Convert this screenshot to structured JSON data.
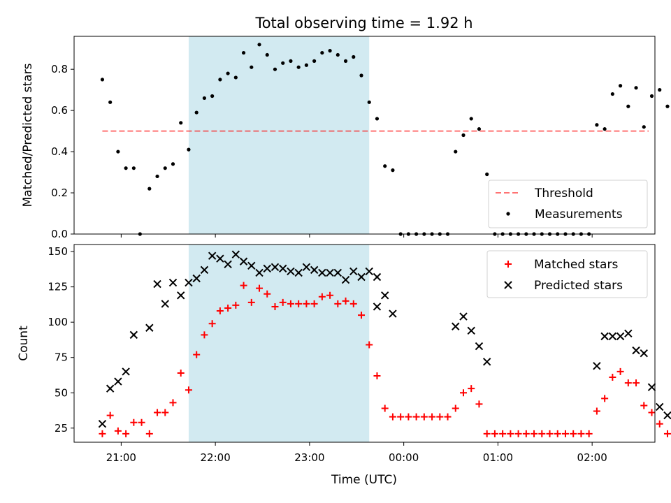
{
  "figure": {
    "title": "Total observing time = 1.92 h",
    "xlabel": "Time (UTC)"
  },
  "colors": {
    "highlight": "#add8e6",
    "threshold": "#ff0000",
    "measurements": "#000000",
    "matched": "#ff0000",
    "predicted": "#000000"
  },
  "chart_data": [
    {
      "type": "scatter",
      "ylabel": "Matched/Predicted stars",
      "xlim": [
        "20:30",
        "02:40"
      ],
      "ylim": [
        0,
        0.96
      ],
      "yticks": [
        "0.0",
        "0.2",
        "0.4",
        "0.6",
        "0.8"
      ],
      "grid": false,
      "legend_position": "lower right",
      "highlight_span": [
        "21:43",
        "23:38"
      ],
      "threshold": {
        "name": "Threshold",
        "value": 0.5,
        "x_range": [
          "20:48",
          "02:36"
        ]
      },
      "series": [
        {
          "name": "Measurements",
          "points": [
            [
              "20:48",
              0.75
            ],
            [
              "20:53",
              0.64
            ],
            [
              "20:58",
              0.4
            ],
            [
              "21:03",
              0.32
            ],
            [
              "21:08",
              0.32
            ],
            [
              "21:12",
              0.0
            ],
            [
              "21:18",
              0.22
            ],
            [
              "21:23",
              0.28
            ],
            [
              "21:28",
              0.32
            ],
            [
              "21:33",
              0.34
            ],
            [
              "21:38",
              0.54
            ],
            [
              "21:43",
              0.41
            ],
            [
              "21:48",
              0.59
            ],
            [
              "21:53",
              0.66
            ],
            [
              "21:58",
              0.67
            ],
            [
              "22:03",
              0.75
            ],
            [
              "22:08",
              0.78
            ],
            [
              "22:13",
              0.76
            ],
            [
              "22:18",
              0.88
            ],
            [
              "22:23",
              0.81
            ],
            [
              "22:28",
              0.92
            ],
            [
              "22:33",
              0.87
            ],
            [
              "22:38",
              0.8
            ],
            [
              "22:43",
              0.83
            ],
            [
              "22:48",
              0.84
            ],
            [
              "22:53",
              0.81
            ],
            [
              "22:58",
              0.82
            ],
            [
              "23:03",
              0.84
            ],
            [
              "23:08",
              0.88
            ],
            [
              "23:13",
              0.89
            ],
            [
              "23:18",
              0.87
            ],
            [
              "23:23",
              0.84
            ],
            [
              "23:28",
              0.86
            ],
            [
              "23:33",
              0.77
            ],
            [
              "23:38",
              0.64
            ],
            [
              "23:43",
              0.56
            ],
            [
              "23:48",
              0.33
            ],
            [
              "23:53",
              0.31
            ],
            [
              "23:58",
              0.0
            ],
            [
              "00:03",
              0.0
            ],
            [
              "00:08",
              0.0
            ],
            [
              "00:13",
              0.0
            ],
            [
              "00:18",
              0.0
            ],
            [
              "00:23",
              0.0
            ],
            [
              "00:28",
              0.0
            ],
            [
              "00:33",
              0.4
            ],
            [
              "00:38",
              0.48
            ],
            [
              "00:43",
              0.56
            ],
            [
              "00:48",
              0.51
            ],
            [
              "00:53",
              0.29
            ],
            [
              "00:58",
              0.0
            ],
            [
              "01:03",
              0.0
            ],
            [
              "01:08",
              0.0
            ],
            [
              "01:13",
              0.0
            ],
            [
              "01:18",
              0.0
            ],
            [
              "01:23",
              0.0
            ],
            [
              "01:28",
              0.0
            ],
            [
              "01:33",
              0.0
            ],
            [
              "01:38",
              0.0
            ],
            [
              "01:43",
              0.0
            ],
            [
              "01:48",
              0.0
            ],
            [
              "01:53",
              0.0
            ],
            [
              "01:58",
              0.0
            ],
            [
              "02:03",
              0.53
            ],
            [
              "02:08",
              0.51
            ],
            [
              "02:13",
              0.68
            ],
            [
              "02:18",
              0.72
            ],
            [
              "02:23",
              0.62
            ],
            [
              "02:28",
              0.71
            ],
            [
              "02:33",
              0.52
            ],
            [
              "02:38",
              0.67
            ],
            [
              "02:43",
              0.7
            ],
            [
              "02:48",
              0.62
            ]
          ]
        }
      ]
    },
    {
      "type": "scatter",
      "ylabel": "Count",
      "xlabel": "Time (UTC)",
      "xlim": [
        "20:30",
        "02:40"
      ],
      "xticks": [
        "21:00",
        "22:00",
        "23:00",
        "00:00",
        "01:00",
        "02:00"
      ],
      "ylim": [
        15,
        155
      ],
      "yticks": [
        25,
        50,
        75,
        100,
        125,
        150
      ],
      "grid": false,
      "legend_position": "upper right",
      "highlight_span": [
        "21:43",
        "23:38"
      ],
      "series": [
        {
          "name": "Matched stars",
          "marker": "+",
          "points": [
            [
              "20:48",
              21
            ],
            [
              "20:53",
              34
            ],
            [
              "20:58",
              23
            ],
            [
              "21:03",
              21
            ],
            [
              "21:08",
              29
            ],
            [
              "21:13",
              29
            ],
            [
              "21:18",
              21
            ],
            [
              "21:23",
              36
            ],
            [
              "21:28",
              36
            ],
            [
              "21:33",
              43
            ],
            [
              "21:38",
              64
            ],
            [
              "21:43",
              52
            ],
            [
              "21:48",
              77
            ],
            [
              "21:53",
              91
            ],
            [
              "21:58",
              99
            ],
            [
              "22:03",
              108
            ],
            [
              "22:08",
              110
            ],
            [
              "22:13",
              112
            ],
            [
              "22:18",
              126
            ],
            [
              "22:23",
              114
            ],
            [
              "22:28",
              124
            ],
            [
              "22:33",
              120
            ],
            [
              "22:38",
              111
            ],
            [
              "22:43",
              114
            ],
            [
              "22:48",
              113
            ],
            [
              "22:53",
              113
            ],
            [
              "22:58",
              113
            ],
            [
              "23:03",
              113
            ],
            [
              "23:08",
              118
            ],
            [
              "23:13",
              119
            ],
            [
              "23:18",
              113
            ],
            [
              "23:23",
              115
            ],
            [
              "23:28",
              113
            ],
            [
              "23:33",
              105
            ],
            [
              "23:38",
              84
            ],
            [
              "23:43",
              62
            ],
            [
              "23:48",
              39
            ],
            [
              "23:53",
              33
            ],
            [
              "23:58",
              33
            ],
            [
              "00:03",
              33
            ],
            [
              "00:08",
              33
            ],
            [
              "00:13",
              33
            ],
            [
              "00:18",
              33
            ],
            [
              "00:23",
              33
            ],
            [
              "00:28",
              33
            ],
            [
              "00:33",
              39
            ],
            [
              "00:38",
              50
            ],
            [
              "00:43",
              53
            ],
            [
              "00:48",
              42
            ],
            [
              "00:53",
              21
            ],
            [
              "00:58",
              21
            ],
            [
              "01:03",
              21
            ],
            [
              "01:08",
              21
            ],
            [
              "01:13",
              21
            ],
            [
              "01:18",
              21
            ],
            [
              "01:23",
              21
            ],
            [
              "01:28",
              21
            ],
            [
              "01:33",
              21
            ],
            [
              "01:38",
              21
            ],
            [
              "01:43",
              21
            ],
            [
              "01:48",
              21
            ],
            [
              "01:53",
              21
            ],
            [
              "01:58",
              21
            ],
            [
              "02:03",
              37
            ],
            [
              "02:08",
              46
            ],
            [
              "02:13",
              61
            ],
            [
              "02:18",
              65
            ],
            [
              "02:23",
              57
            ],
            [
              "02:28",
              57
            ],
            [
              "02:33",
              41
            ],
            [
              "02:38",
              36
            ],
            [
              "02:43",
              28
            ],
            [
              "02:48",
              21
            ]
          ]
        },
        {
          "name": "Predicted stars",
          "marker": "x",
          "points": [
            [
              "20:48",
              28
            ],
            [
              "20:53",
              53
            ],
            [
              "20:58",
              58
            ],
            [
              "21:03",
              65
            ],
            [
              "21:08",
              91
            ],
            [
              "21:18",
              96
            ],
            [
              "21:23",
              127
            ],
            [
              "21:28",
              113
            ],
            [
              "21:33",
              128
            ],
            [
              "21:38",
              119
            ],
            [
              "21:43",
              128
            ],
            [
              "21:48",
              131
            ],
            [
              "21:53",
              137
            ],
            [
              "21:58",
              147
            ],
            [
              "22:03",
              145
            ],
            [
              "22:08",
              141
            ],
            [
              "22:13",
              148
            ],
            [
              "22:18",
              143
            ],
            [
              "22:23",
              140
            ],
            [
              "22:28",
              135
            ],
            [
              "22:33",
              138
            ],
            [
              "22:38",
              139
            ],
            [
              "22:43",
              138
            ],
            [
              "22:48",
              136
            ],
            [
              "22:53",
              135
            ],
            [
              "22:58",
              139
            ],
            [
              "23:03",
              137
            ],
            [
              "23:08",
              135
            ],
            [
              "23:13",
              135
            ],
            [
              "23:18",
              135
            ],
            [
              "23:23",
              130
            ],
            [
              "23:28",
              136
            ],
            [
              "23:33",
              132
            ],
            [
              "23:38",
              136
            ],
            [
              "23:43",
              132
            ],
            [
              "23:43",
              111
            ],
            [
              "23:48",
              119
            ],
            [
              "23:53",
              106
            ],
            [
              "00:33",
              97
            ],
            [
              "00:38",
              104
            ],
            [
              "00:43",
              94
            ],
            [
              "00:48",
              83
            ],
            [
              "00:53",
              72
            ],
            [
              "02:03",
              69
            ],
            [
              "02:08",
              90
            ],
            [
              "02:13",
              90
            ],
            [
              "02:18",
              90
            ],
            [
              "02:23",
              92
            ],
            [
              "02:28",
              80
            ],
            [
              "02:33",
              78
            ],
            [
              "02:38",
              54
            ],
            [
              "02:43",
              40
            ],
            [
              "02:48",
              34
            ]
          ]
        }
      ]
    }
  ]
}
